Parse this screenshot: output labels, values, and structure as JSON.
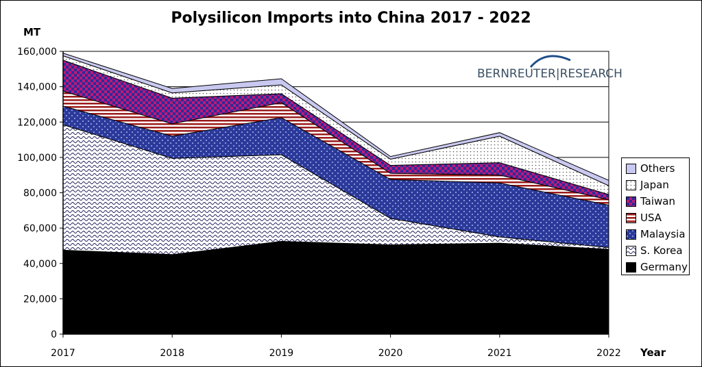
{
  "chart_data": {
    "type": "area",
    "stacked": true,
    "title": "Polysilicon Imports into China 2017 - 2022",
    "ylabel": "MT",
    "xlabel": "Year",
    "x": [
      "2017",
      "2018",
      "2019",
      "2020",
      "2021",
      "2022"
    ],
    "ylim": [
      0,
      160000
    ],
    "yticks": [
      "0",
      "20,000",
      "40,000",
      "60,000",
      "80,000",
      "100,000",
      "120,000",
      "140,000",
      "160,000"
    ],
    "grid": "horizontal",
    "legend_position": "right",
    "series": [
      {
        "name": "Germany",
        "color": "#000000",
        "pattern": "solid",
        "values": [
          47500,
          45000,
          52500,
          50500,
          51500,
          48000
        ]
      },
      {
        "name": "S. Korea",
        "color": "#3a3a8a",
        "pattern": "wave",
        "values": [
          71000,
          54500,
          49000,
          15000,
          3500,
          1000
        ]
      },
      {
        "name": "Malaysia",
        "color": "#2b3a9a",
        "pattern": "checker",
        "values": [
          10500,
          12500,
          21000,
          22000,
          30500,
          24000
        ]
      },
      {
        "name": "USA",
        "color": "#9b1b1b",
        "pattern": "hstripe",
        "values": [
          8500,
          7000,
          8500,
          3500,
          4500,
          3000
        ]
      },
      {
        "name": "Taiwan",
        "color": "#c01878",
        "pattern": "checker-red",
        "values": [
          17500,
          14500,
          5000,
          4500,
          7000,
          3000
        ]
      },
      {
        "name": "Japan",
        "color": "#555555",
        "pattern": "dots",
        "values": [
          2500,
          3000,
          5000,
          3500,
          15000,
          5000
        ]
      },
      {
        "name": "Others",
        "color": "#c8c8f0",
        "pattern": "solid-light",
        "values": [
          1500,
          2500,
          3500,
          1500,
          2000,
          3000
        ]
      }
    ]
  },
  "logo": {
    "text_left": "BERNREUTER",
    "text_right": "RESEARCH"
  }
}
